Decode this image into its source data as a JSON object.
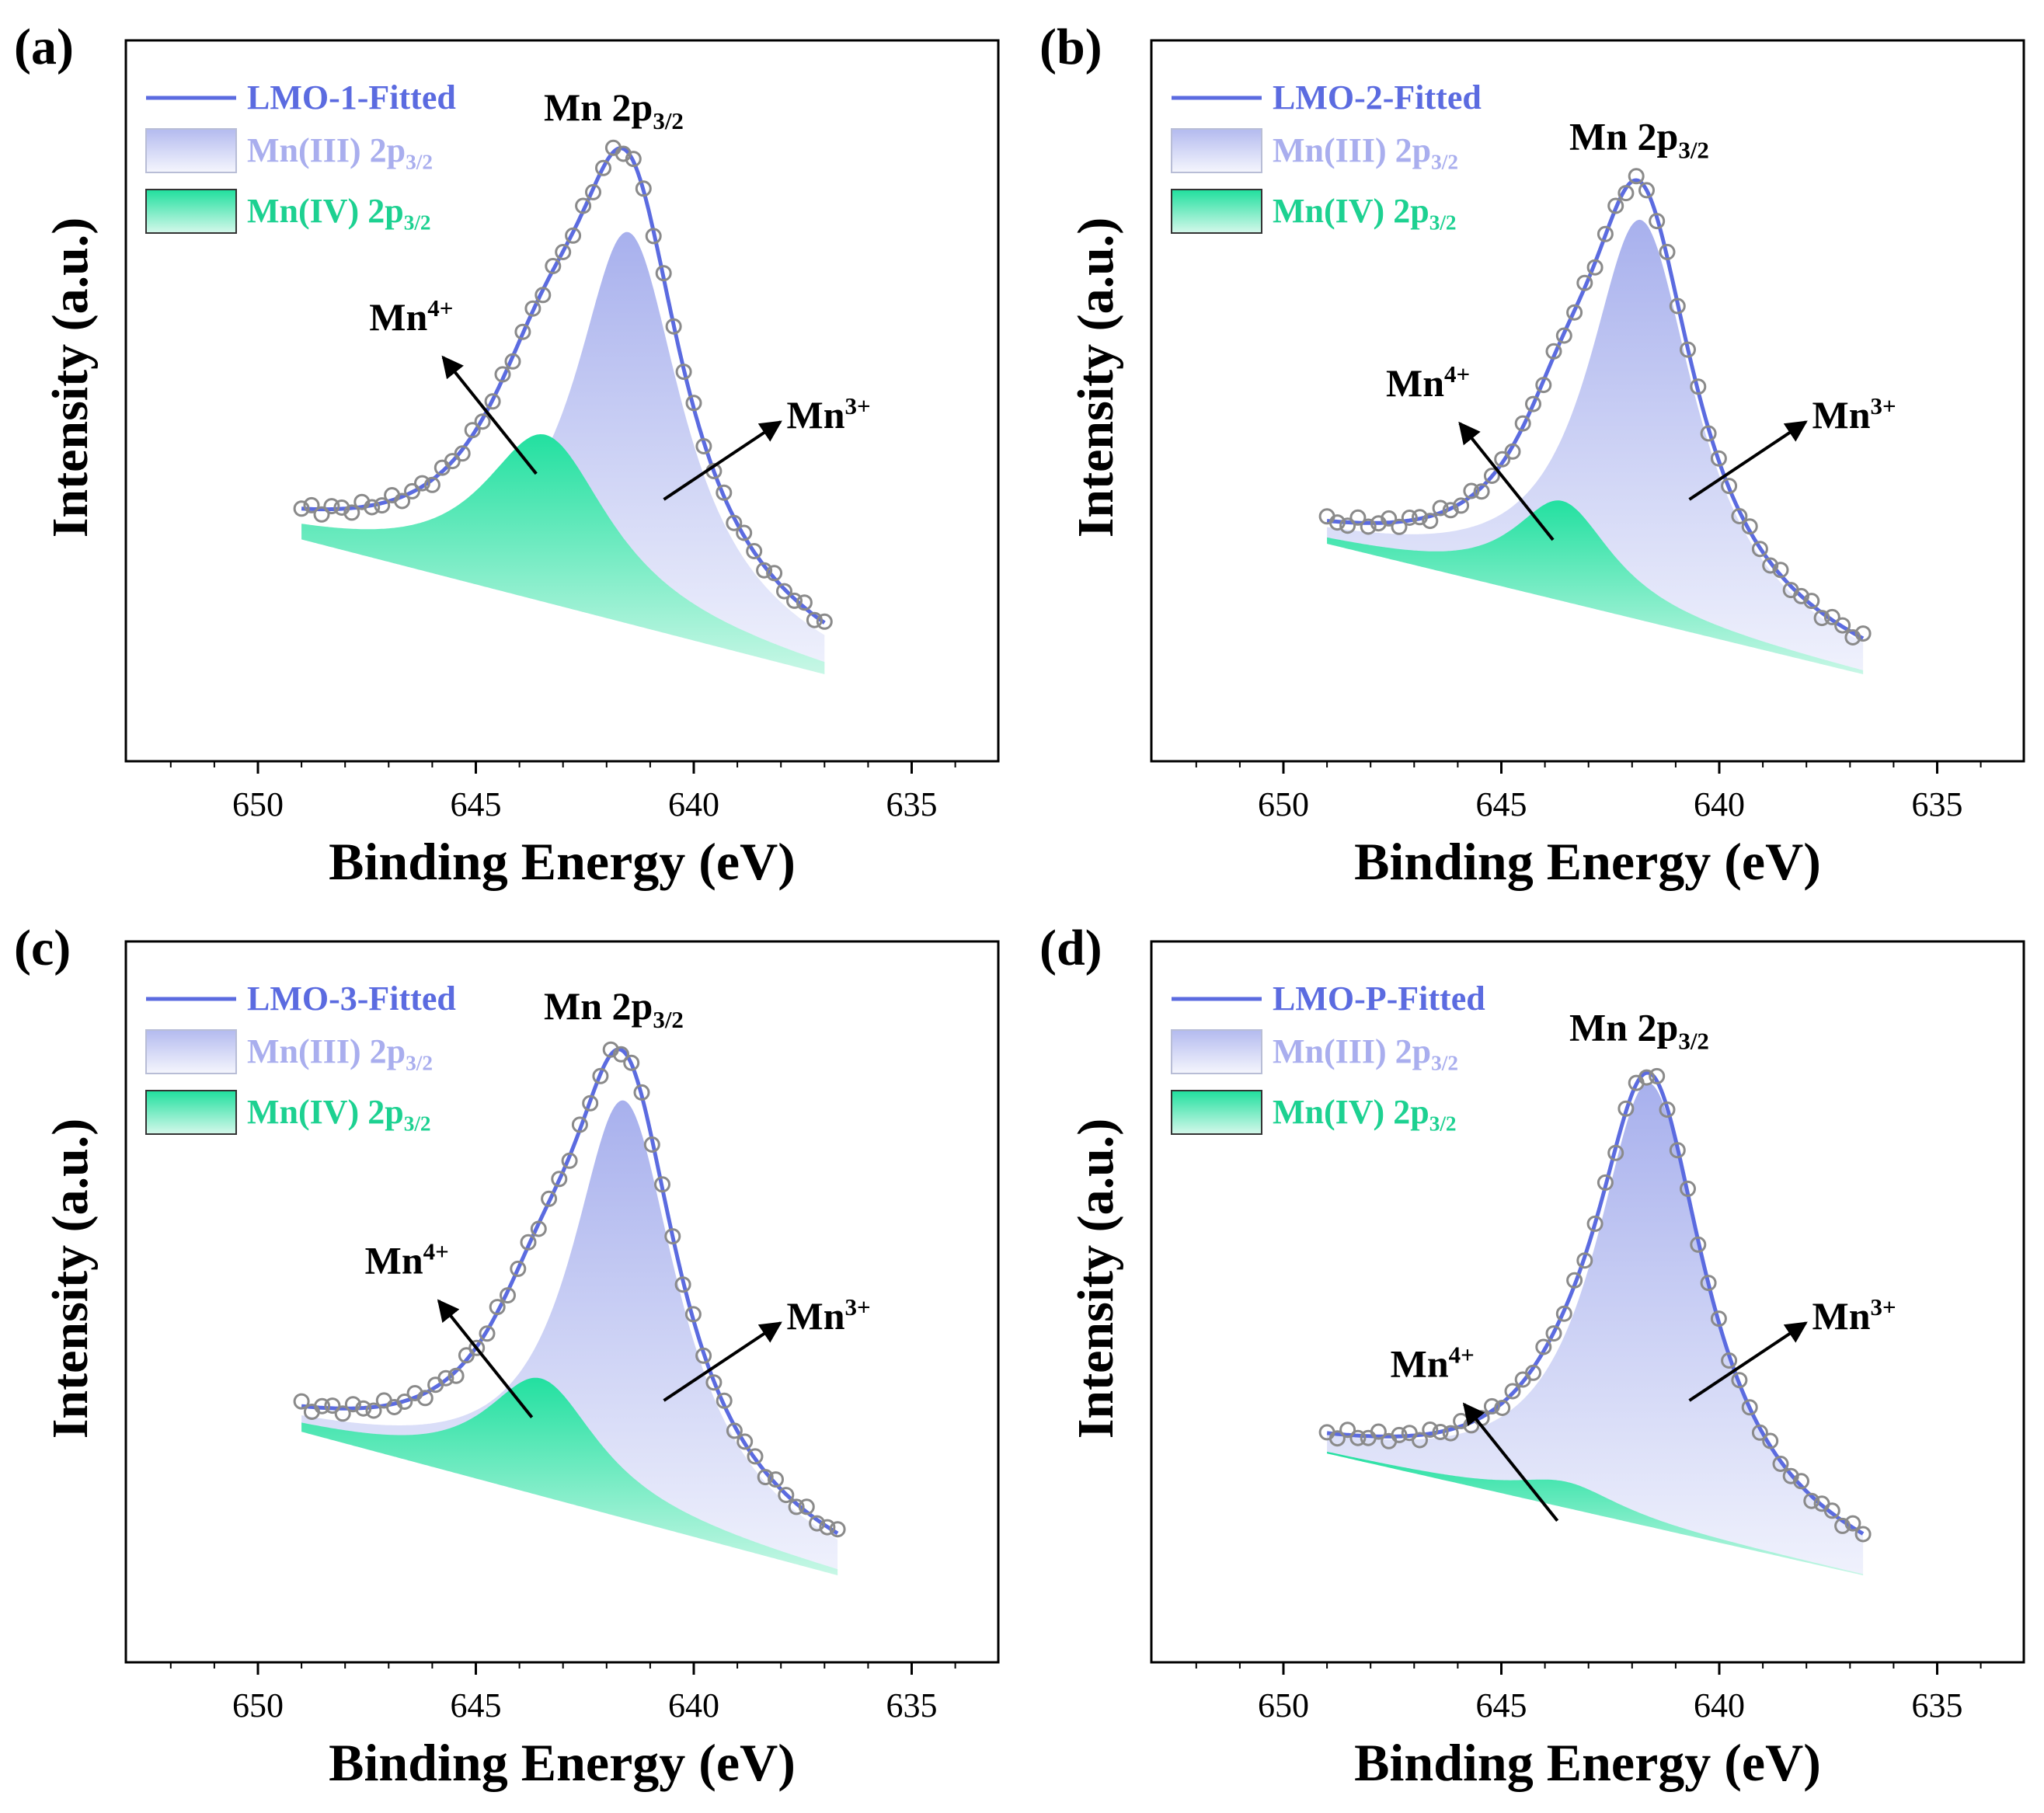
{
  "figure": {
    "x_axis_label": "Binding Energy (eV)",
    "y_axis_label": "Intensity (a.u.)",
    "colors": {
      "fit_line": "#5B6BE0",
      "mn3_fill": "#AEB6EE",
      "mn4_fill": "#2EE3A4",
      "mn4_text": "#1DD191",
      "mn3_text": "#A9AEEE",
      "markers": "#8A8A8A",
      "axes": "#000000"
    }
  },
  "chart_data": [
    {
      "type": "line",
      "panel_label": "(a)",
      "title": "Mn 2p3/2",
      "xlabel": "Binding Energy (eV)",
      "ylabel": "Intensity (a.u.)",
      "xlim": [
        653,
        633
      ],
      "x_reversed": true,
      "xticks": [
        "650",
        "645",
        "640",
        "635"
      ],
      "yticks": [],
      "grid": false,
      "legend_position": "top-left",
      "legend": [
        {
          "label": "LMO-1-Fitted",
          "kind": "line"
        },
        {
          "label": "Mn(III) 2p3/2",
          "kind": "area-mn3"
        },
        {
          "label": "Mn(IV) 2p3/2",
          "kind": "area-mn4"
        }
      ],
      "annotations": {
        "left": "Mn4+",
        "right": "Mn3+",
        "peak": "Mn 2p3/2"
      },
      "baseline": {
        "left": 0.31,
        "right": 0.0
      },
      "peaks": [
        {
          "name": "Mn(III) 2p3/2",
          "center": 641.5,
          "height": 0.9,
          "fwhm": 3.0
        },
        {
          "name": "Mn(IV) 2p3/2",
          "center": 643.4,
          "height": 0.385,
          "fwhm": 3.6
        }
      ],
      "data_range": [
        649,
        637
      ]
    },
    {
      "type": "line",
      "panel_label": "(b)",
      "title": "Mn 2p3/2",
      "xlabel": "Binding Energy (eV)",
      "ylabel": "Intensity (a.u.)",
      "xlim": [
        653,
        633
      ],
      "x_reversed": true,
      "xticks": [
        "650",
        "645",
        "640",
        "635"
      ],
      "yticks": [],
      "grid": false,
      "legend_position": "top-left",
      "legend": [
        {
          "label": "LMO-2-Fitted",
          "kind": "line"
        },
        {
          "label": "Mn(III) 2p3/2",
          "kind": "area-mn3"
        },
        {
          "label": "Mn(IV) 2p3/2",
          "kind": "area-mn4"
        }
      ],
      "annotations": {
        "left": "Mn4+",
        "right": "Mn3+",
        "peak": "Mn 2p3/2"
      },
      "baseline": {
        "left": 0.3,
        "right": 0.0
      },
      "peaks": [
        {
          "name": "Mn(III) 2p3/2",
          "center": 641.8,
          "height": 0.92,
          "fwhm": 3.0
        },
        {
          "name": "Mn(IV) 2p3/2",
          "center": 643.6,
          "height": 0.23,
          "fwhm": 2.8
        }
      ],
      "data_range": [
        649,
        636.7
      ]
    },
    {
      "type": "line",
      "panel_label": "(c)",
      "title": "Mn 2p3/2",
      "xlabel": "Binding Energy (eV)",
      "ylabel": "Intensity (a.u.)",
      "xlim": [
        653,
        633
      ],
      "x_reversed": true,
      "xticks": [
        "650",
        "645",
        "640",
        "635"
      ],
      "yticks": [],
      "grid": false,
      "legend_position": "top-left",
      "legend": [
        {
          "label": "LMO-3-Fitted",
          "kind": "line"
        },
        {
          "label": "Mn(III) 2p3/2",
          "kind": "area-mn3"
        },
        {
          "label": "Mn(IV) 2p3/2",
          "kind": "area-mn4"
        }
      ],
      "annotations": {
        "left": "Mn4+",
        "right": "Mn3+",
        "peak": "Mn 2p3/2"
      },
      "baseline": {
        "left": 0.33,
        "right": 0.0
      },
      "peaks": [
        {
          "name": "Mn(III) 2p3/2",
          "center": 641.6,
          "height": 0.96,
          "fwhm": 3.0
        },
        {
          "name": "Mn(IV) 2p3/2",
          "center": 643.5,
          "height": 0.27,
          "fwhm": 3.2
        }
      ],
      "data_range": [
        649,
        636.7
      ]
    },
    {
      "type": "line",
      "panel_label": "(d)",
      "title": "Mn 2p3/2",
      "xlabel": "Binding Energy (eV)",
      "ylabel": "Intensity (a.u.)",
      "xlim": [
        653,
        633
      ],
      "x_reversed": true,
      "xticks": [
        "650",
        "645",
        "640",
        "635"
      ],
      "yticks": [],
      "grid": false,
      "legend_position": "top-left",
      "legend": [
        {
          "label": "LMO-P-Fitted",
          "kind": "line"
        },
        {
          "label": "Mn(III) 2p3/2",
          "kind": "area-mn3"
        },
        {
          "label": "Mn(IV) 2p3/2",
          "kind": "area-mn4"
        }
      ],
      "annotations": {
        "left": "Mn4+",
        "right": "Mn3+",
        "peak": "Mn 2p3/2"
      },
      "baseline": {
        "left": 0.28,
        "right": 0.0
      },
      "peaks": [
        {
          "name": "Mn(III) 2p3/2",
          "center": 641.6,
          "height": 1.02,
          "fwhm": 3.1
        },
        {
          "name": "Mn(IV) 2p3/2",
          "center": 643.5,
          "height": 0.06,
          "fwhm": 3.0
        }
      ],
      "data_range": [
        649,
        636.7
      ]
    }
  ]
}
